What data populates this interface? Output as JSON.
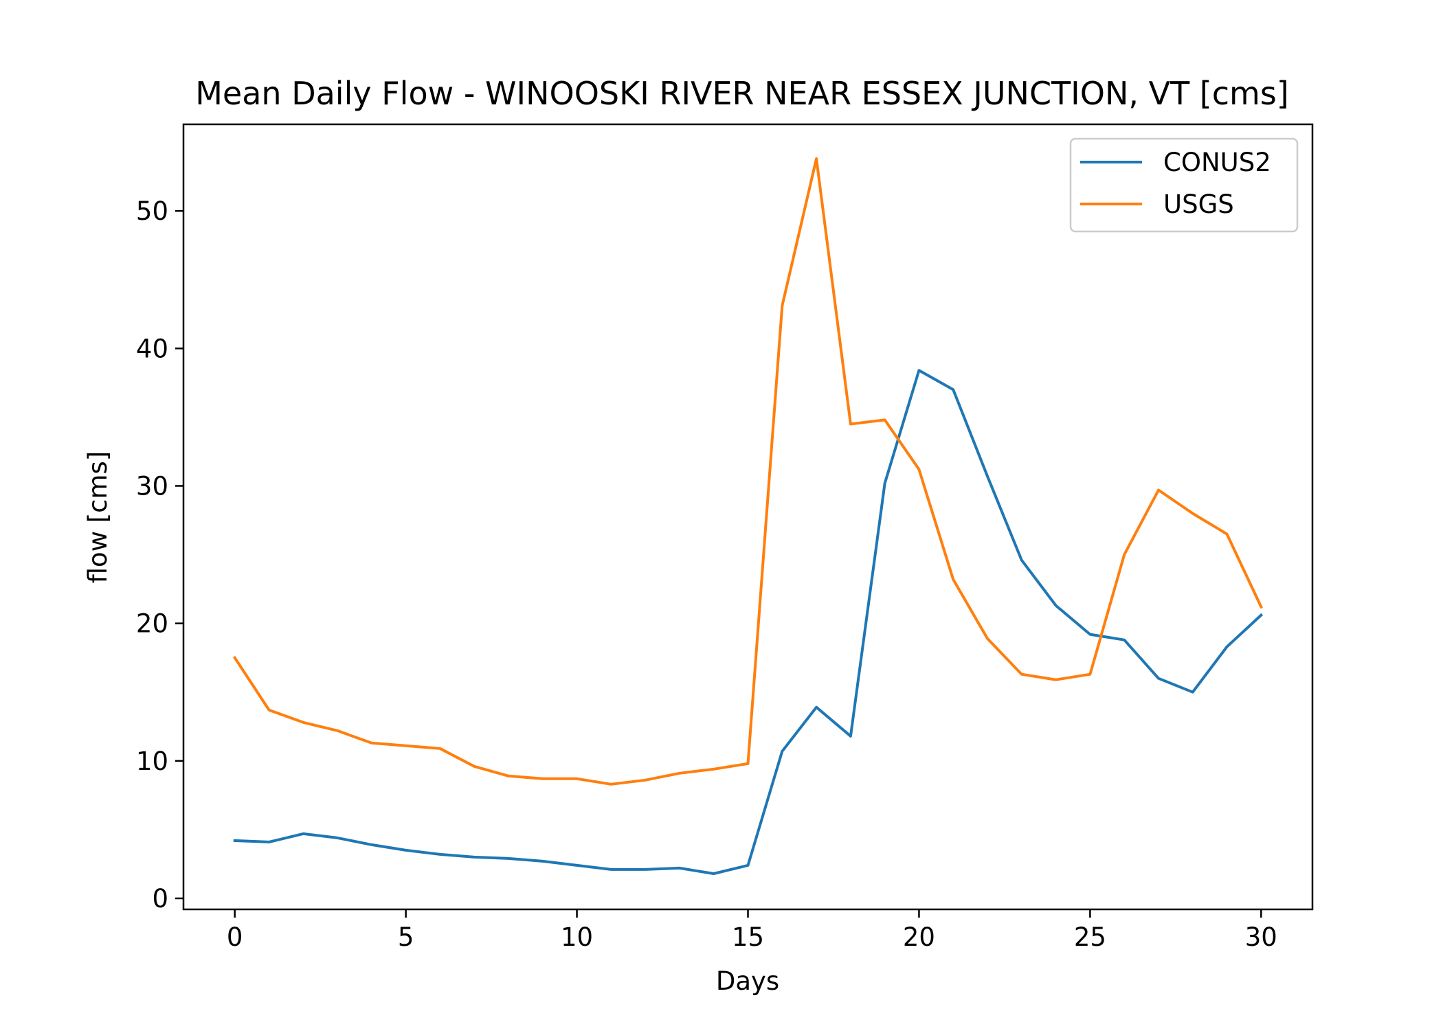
{
  "chart_data": {
    "type": "line",
    "title": "Mean Daily Flow - WINOOSKI RIVER NEAR ESSEX JUNCTION, VT [cms]",
    "xlabel": "Days",
    "ylabel": "flow [cms]",
    "xlim": [
      -1.5,
      31.5
    ],
    "ylim": [
      -0.8,
      56.3
    ],
    "xticks": [
      0,
      5,
      10,
      15,
      20,
      25,
      30
    ],
    "yticks": [
      0,
      10,
      20,
      30,
      40,
      50
    ],
    "grid": false,
    "legend_position": "top-right",
    "x": [
      0,
      1,
      2,
      3,
      4,
      5,
      6,
      7,
      8,
      9,
      10,
      11,
      12,
      13,
      14,
      15,
      16,
      17,
      18,
      19,
      20,
      21,
      22,
      23,
      24,
      25,
      26,
      27,
      28,
      29,
      30
    ],
    "series": [
      {
        "name": "CONUS2",
        "color": "#1f77b4",
        "values": [
          4.2,
          4.1,
          4.7,
          4.4,
          3.9,
          3.5,
          3.2,
          3.0,
          2.9,
          2.7,
          2.4,
          2.1,
          2.1,
          2.2,
          1.8,
          2.4,
          10.7,
          13.9,
          11.8,
          30.2,
          38.4,
          37.0,
          30.7,
          24.6,
          21.3,
          19.2,
          18.8,
          16.0,
          15.0,
          18.3,
          20.6
        ]
      },
      {
        "name": "USGS",
        "color": "#ff7f0e",
        "values": [
          17.5,
          13.7,
          12.8,
          12.2,
          11.3,
          11.1,
          10.9,
          9.6,
          8.9,
          8.7,
          8.7,
          8.3,
          8.6,
          9.1,
          9.4,
          9.8,
          43.1,
          53.8,
          34.5,
          34.8,
          31.2,
          23.2,
          18.9,
          16.3,
          15.9,
          16.3,
          25.0,
          29.7,
          28.0,
          26.5,
          21.2
        ]
      }
    ]
  }
}
